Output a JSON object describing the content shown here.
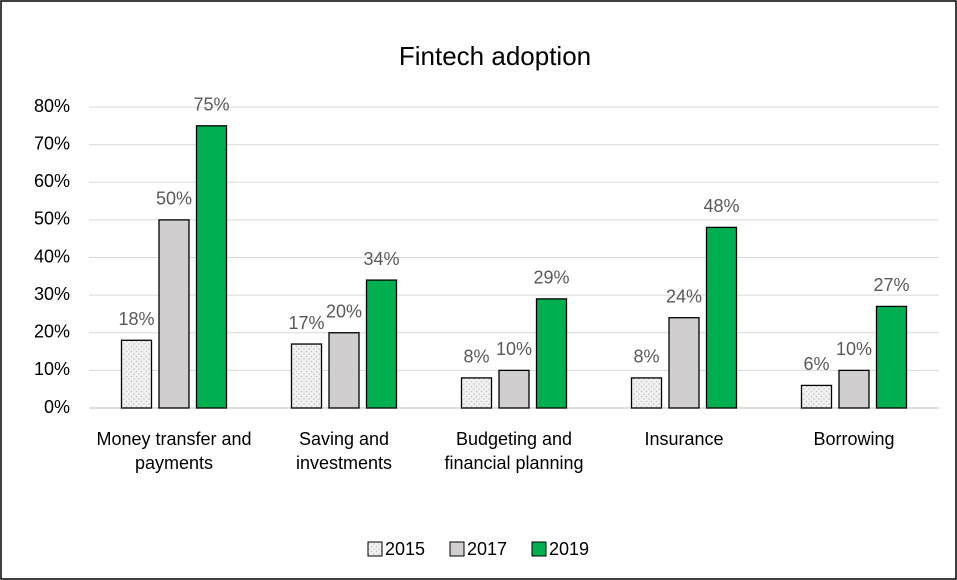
{
  "chart_data": {
    "type": "bar",
    "title": "Fintech adoption",
    "categories": [
      "Money transfer and payments",
      "Saving and investments",
      "Budgeting and financial planning",
      "Insurance",
      "Borrowing"
    ],
    "series": [
      {
        "name": "2015",
        "color": "#f2f2f2",
        "pattern": "dotted",
        "values": [
          18,
          17,
          8,
          8,
          6
        ],
        "value_labels": [
          "18%",
          "17%",
          "8%",
          "8%",
          "6%"
        ]
      },
      {
        "name": "2017",
        "color": "#d0cece",
        "values": [
          50,
          20,
          10,
          24,
          10
        ],
        "value_labels": [
          "50%",
          "20%",
          "10%",
          "24%",
          "10%"
        ]
      },
      {
        "name": "2019",
        "color": "#00b050",
        "values": [
          75,
          34,
          29,
          48,
          27
        ],
        "value_labels": [
          "75%",
          "34%",
          "29%",
          "48%",
          "27%"
        ]
      }
    ],
    "ylim": [
      0,
      80
    ],
    "yticks": [
      {
        "value": 0,
        "label": "0%"
      },
      {
        "value": 10,
        "label": "10%"
      },
      {
        "value": 20,
        "label": "20%"
      },
      {
        "value": 30,
        "label": "30%"
      },
      {
        "value": 40,
        "label": "40%"
      },
      {
        "value": 50,
        "label": "50%"
      },
      {
        "value": 60,
        "label": "60%"
      },
      {
        "value": 70,
        "label": "70%"
      },
      {
        "value": 80,
        "label": "80%"
      }
    ],
    "grid": true,
    "legend": "bottom"
  }
}
